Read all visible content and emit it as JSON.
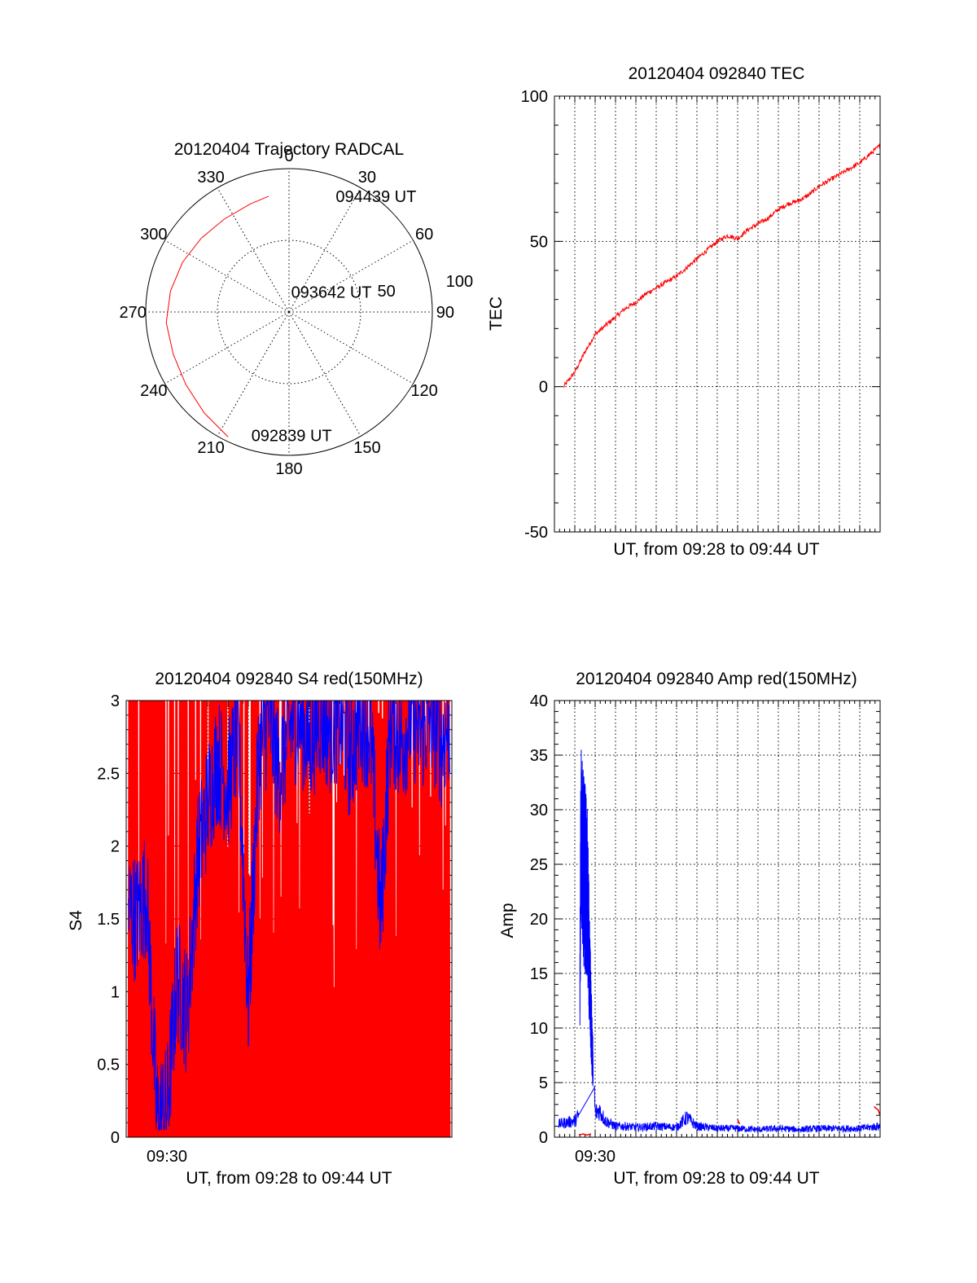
{
  "colors": {
    "primary_series": "#ff0000",
    "secondary_series": "#0000ff",
    "axes": "#000000"
  },
  "chart_data": [
    {
      "type": "polar",
      "title": "20120404 Trajectory RADCAL",
      "angle_labels": [
        "0",
        "30",
        "60",
        "90",
        "120",
        "150",
        "180",
        "210",
        "240",
        "270",
        "300",
        "330"
      ],
      "radial_labels": [
        "50",
        "100"
      ],
      "radial_range": [
        0,
        100
      ],
      "trajectory": {
        "color": "#ff0000",
        "points": [
          {
            "azimuth": 206,
            "radius": 97
          },
          {
            "azimuth": 220,
            "radius": 92
          },
          {
            "azimuth": 235,
            "radius": 88
          },
          {
            "azimuth": 250,
            "radius": 86
          },
          {
            "azimuth": 265,
            "radius": 86
          },
          {
            "azimuth": 280,
            "radius": 84
          },
          {
            "azimuth": 295,
            "radius": 82
          },
          {
            "azimuth": 310,
            "radius": 80
          },
          {
            "azimuth": 325,
            "radius": 79
          },
          {
            "azimuth": 340,
            "radius": 80
          },
          {
            "azimuth": 350,
            "radius": 82
          }
        ]
      },
      "annotations": [
        {
          "text": "094439 UT",
          "azimuth": 22,
          "radius": 87
        },
        {
          "text": "093642 UT",
          "azimuth": 6,
          "radius": 14
        },
        {
          "text": "092839 UT",
          "azimuth": 197,
          "radius": 90
        }
      ]
    },
    {
      "type": "line",
      "title": "20120404 092840 TEC",
      "xlabel": "UT, from 09:28 to 09:44 UT",
      "ylabel": "TEC",
      "xlim": [
        0,
        16
      ],
      "ylim": [
        -50,
        100
      ],
      "yticks": [
        -50,
        0,
        50,
        100
      ],
      "grid": true,
      "series": [
        {
          "color": "#ff0000",
          "x": [
            0.45,
            1.0,
            1.5,
            2.0,
            2.5,
            3.0,
            3.5,
            4.0,
            4.5,
            5.0,
            5.5,
            6.0,
            6.5,
            7.0,
            7.5,
            8.0,
            8.5,
            9.0,
            9.5,
            10.0,
            10.5,
            11.0,
            11.5,
            12.0,
            12.5,
            13.0,
            13.5,
            14.0,
            14.5,
            15.0,
            15.5,
            16.0
          ],
          "y": [
            0,
            5,
            12,
            18,
            21,
            24,
            27,
            29,
            32,
            34,
            36,
            38,
            41,
            44,
            47,
            50,
            52,
            51,
            54,
            56,
            58,
            61,
            63,
            64,
            66,
            69,
            71,
            73,
            75,
            77,
            80,
            83
          ]
        }
      ]
    },
    {
      "type": "line",
      "title": "20120404 092840 S4 red(150MHz)",
      "xlabel": "UT, from 09:28 to 09:44 UT",
      "ylabel": "S4",
      "xlim": [
        0,
        16
      ],
      "xticks": [
        {
          "value": 2,
          "label": "09:30"
        }
      ],
      "ylim": [
        0,
        3
      ],
      "yticks": [
        "0",
        "0.5",
        "1",
        "1.5",
        "2",
        "2.5",
        "3"
      ],
      "grid": true,
      "series": [
        {
          "color": "#ff0000",
          "x_range": [
            0.1,
            15.9
          ],
          "y_range": [
            0,
            3
          ],
          "noisy": true
        },
        {
          "color": "#0000ff",
          "x": [
            0.0,
            0.5,
            1.0,
            1.5,
            2.0,
            2.5,
            3.0,
            3.5,
            4.0,
            4.5,
            5.0,
            5.5,
            6.0,
            6.5,
            7.0,
            7.5,
            8.0,
            8.5,
            9.0,
            9.5,
            10.0,
            10.5,
            11.0,
            11.5,
            12.0,
            12.5,
            13.0,
            13.5,
            14.0,
            14.5,
            15.0,
            15.5,
            16.0
          ],
          "y": [
            1.6,
            1.5,
            1.7,
            0.15,
            0.18,
            1.1,
            0.85,
            1.9,
            2.3,
            2.6,
            2.4,
            2.8,
            0.9,
            2.6,
            2.9,
            2.5,
            2.8,
            2.9,
            2.7,
            2.9,
            2.8,
            2.9,
            2.6,
            2.9,
            2.8,
            1.5,
            2.9,
            2.7,
            2.9,
            2.8,
            2.9,
            2.7,
            2.9
          ]
        }
      ]
    },
    {
      "type": "line",
      "title": "20120404 092840 Amp red(150MHz)",
      "xlabel": "UT, from 09:28 to 09:44 UT",
      "ylabel": "Amp",
      "xlim": [
        0,
        16
      ],
      "xticks": [
        {
          "value": 2,
          "label": "09:30"
        }
      ],
      "ylim": [
        0,
        40
      ],
      "yticks": [
        0,
        5,
        10,
        15,
        20,
        25,
        30,
        35,
        40
      ],
      "grid": true,
      "series": [
        {
          "color": "#0000ff",
          "x": [
            0.2,
            1.0,
            1.2,
            1.3,
            1.6,
            1.8,
            2.0,
            2.2,
            2.5,
            3.0,
            3.5,
            4.0,
            5.0,
            6.0,
            6.5,
            7.0,
            8.0,
            9.0,
            10.0,
            11.0,
            12.0,
            13.0,
            14.0,
            15.0,
            15.5,
            16.0
          ],
          "y": [
            1.2,
            1.5,
            2.0,
            30,
            26,
            12,
            2.2,
            2.5,
            1.5,
            1.0,
            1.0,
            0.9,
            1.0,
            0.9,
            1.8,
            1.0,
            0.8,
            0.8,
            0.7,
            0.8,
            0.7,
            0.8,
            0.8,
            0.8,
            0.9,
            1.0
          ]
        },
        {
          "color": "#ff0000",
          "x": [
            1.2,
            1.4,
            1.6,
            1.8,
            9.0,
            9.1,
            15.7,
            15.9,
            16.0
          ],
          "y": [
            0.2,
            0.3,
            0.2,
            0.3,
            1.6,
            1.2,
            2.8,
            2.5,
            2.0
          ]
        }
      ]
    }
  ]
}
